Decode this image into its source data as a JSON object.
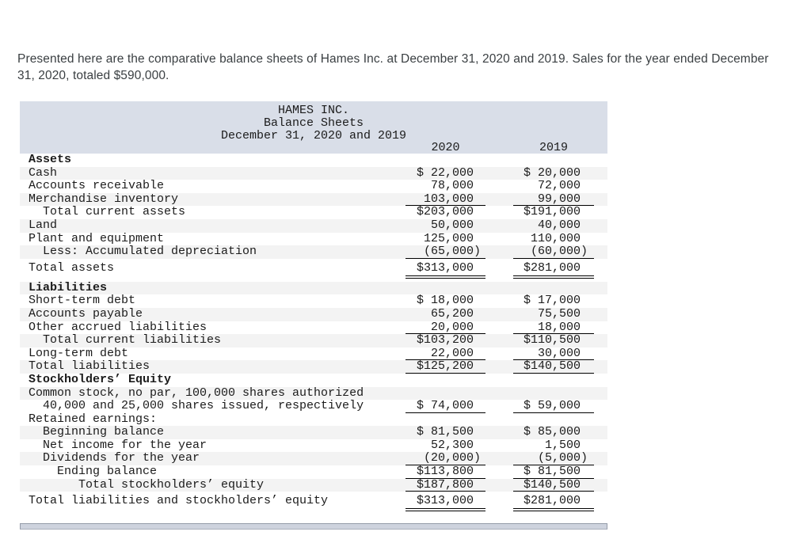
{
  "intro_text": "Presented here are the comparative balance sheets of Hames Inc. at December 31, 2020 and 2019. Sales for the year ended December 31, 2020, totaled $590,000.",
  "table": {
    "title_lines": [
      "HAMES INC.",
      "Balance Sheets",
      "December 31, 2020 and 2019"
    ],
    "col_headers": [
      "2020",
      "2019"
    ],
    "rows": [
      {
        "label": "Assets",
        "bold": true,
        "indent": 0,
        "v2020": "",
        "v2019": "",
        "shade": false,
        "underline": "none",
        "space_before": false
      },
      {
        "label": "Cash",
        "bold": false,
        "indent": 0,
        "v2020": "$ 22,000",
        "v2019": "$ 20,000",
        "shade": true,
        "underline": "none",
        "space_before": false
      },
      {
        "label": "Accounts receivable",
        "bold": false,
        "indent": 0,
        "v2020": "78,000",
        "v2019": "72,000",
        "shade": false,
        "underline": "none",
        "space_before": false
      },
      {
        "label": "Merchandise inventory",
        "bold": false,
        "indent": 0,
        "v2020": "103,000",
        "v2019": "99,000",
        "shade": true,
        "underline": "single",
        "space_before": false
      },
      {
        "label": "Total current assets",
        "bold": false,
        "indent": 2,
        "v2020": "$203,000",
        "v2019": "$191,000",
        "shade": false,
        "underline": "none",
        "space_before": false
      },
      {
        "label": "Land",
        "bold": false,
        "indent": 0,
        "v2020": "50,000",
        "v2019": "40,000",
        "shade": true,
        "underline": "none",
        "space_before": false
      },
      {
        "label": "Plant and equipment",
        "bold": false,
        "indent": 0,
        "v2020": "125,000",
        "v2019": "110,000",
        "shade": false,
        "underline": "none",
        "space_before": false
      },
      {
        "label": "Less: Accumulated depreciation",
        "bold": false,
        "indent": 2,
        "v2020": "(65,000)",
        "v2019": "(60,000)",
        "shade": true,
        "underline": "single",
        "space_before": false
      },
      {
        "label": "Total assets",
        "bold": false,
        "indent": 0,
        "v2020": "$313,000",
        "v2019": "$281,000",
        "shade": false,
        "underline": "double",
        "space_before": true
      },
      {
        "label": "Liabilities",
        "bold": true,
        "indent": 0,
        "v2020": "",
        "v2019": "",
        "shade": true,
        "underline": "none",
        "space_before": true
      },
      {
        "label": "Short-term debt",
        "bold": false,
        "indent": 0,
        "v2020": "$ 18,000",
        "v2019": "$ 17,000",
        "shade": false,
        "underline": "none",
        "space_before": false
      },
      {
        "label": "Accounts payable",
        "bold": false,
        "indent": 0,
        "v2020": "65,200",
        "v2019": "75,500",
        "shade": true,
        "underline": "none",
        "space_before": false
      },
      {
        "label": "Other accrued liabilities",
        "bold": false,
        "indent": 0,
        "v2020": "20,000",
        "v2019": "18,000",
        "shade": false,
        "underline": "single",
        "space_before": false
      },
      {
        "label": "Total current liabilities",
        "bold": false,
        "indent": 2,
        "v2020": "$103,200",
        "v2019": "$110,500",
        "shade": true,
        "underline": "none",
        "space_before": false
      },
      {
        "label": "Long-term debt",
        "bold": false,
        "indent": 0,
        "v2020": "22,000",
        "v2019": "30,000",
        "shade": false,
        "underline": "single",
        "space_before": false
      },
      {
        "label": "Total liabilities",
        "bold": false,
        "indent": 0,
        "v2020": "$125,200",
        "v2019": "$140,500",
        "shade": true,
        "underline": "single",
        "space_before": false
      },
      {
        "label": "Stockholders’ Equity",
        "bold": true,
        "indent": 0,
        "v2020": "",
        "v2019": "",
        "shade": false,
        "underline": "none",
        "space_before": false
      },
      {
        "label": "Common stock, no par, 100,000 shares authorized",
        "bold": false,
        "indent": 0,
        "v2020": "",
        "v2019": "",
        "shade": true,
        "underline": "none",
        "space_before": false
      },
      {
        "label": "40,000 and 25,000 shares issued, respectively",
        "bold": false,
        "indent": 2,
        "v2020": "$ 74,000",
        "v2019": "$ 59,000",
        "shade": false,
        "underline": "single",
        "space_before": false
      },
      {
        "label": "Retained earnings:",
        "bold": false,
        "indent": 0,
        "v2020": "",
        "v2019": "",
        "shade": false,
        "underline": "none",
        "space_before": false
      },
      {
        "label": "Beginning balance",
        "bold": false,
        "indent": 2,
        "v2020": "$ 81,500",
        "v2019": "$ 85,000",
        "shade": true,
        "underline": "none",
        "space_before": false
      },
      {
        "label": "Net income for the year",
        "bold": false,
        "indent": 2,
        "v2020": "52,300",
        "v2019": "1,500",
        "shade": false,
        "underline": "none",
        "space_before": false
      },
      {
        "label": "Dividends for the year",
        "bold": false,
        "indent": 2,
        "v2020": "(20,000)",
        "v2019": "(5,000)",
        "shade": true,
        "underline": "single",
        "space_before": false
      },
      {
        "label": "Ending balance",
        "bold": false,
        "indent": 4,
        "v2020": "$113,800",
        "v2019": "$ 81,500",
        "shade": false,
        "underline": "single",
        "space_before": false
      },
      {
        "label": "Total stockholders’ equity",
        "bold": false,
        "indent": 7,
        "v2020": "$187,800",
        "v2019": "$140,500",
        "shade": true,
        "underline": "single",
        "space_before": false
      },
      {
        "label": "Total liabilities and stockholders’ equity",
        "bold": false,
        "indent": 0,
        "v2020": "$313,000",
        "v2019": "$281,000",
        "shade": false,
        "underline": "double",
        "space_before": true
      }
    ]
  },
  "colors": {
    "header_band": "#d9dee8",
    "row_stripe": "#f3f3f3",
    "text": "#1b1b1b",
    "intro_text": "#3a3f42",
    "bottom_bar_fill": "#ced3de",
    "bottom_bar_border": "#959ca9"
  }
}
